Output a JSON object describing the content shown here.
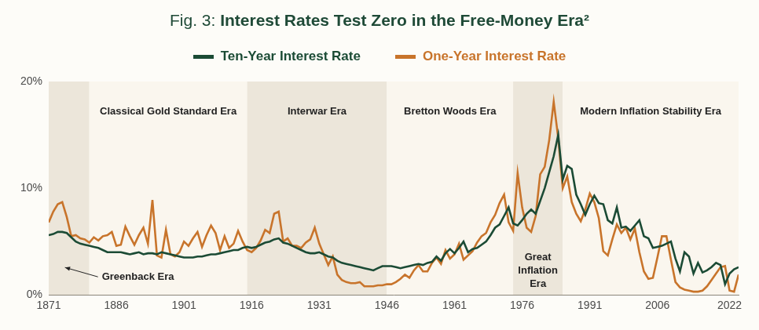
{
  "chart_data": {
    "type": "line",
    "title": "Fig. 3: Interest Rates Test Zero in the Free-Money Era²",
    "legend": "top",
    "grid": false,
    "x": [
      1871,
      1872,
      1873,
      1874,
      1875,
      1876,
      1877,
      1878,
      1879,
      1880,
      1881,
      1882,
      1883,
      1884,
      1885,
      1886,
      1887,
      1888,
      1889,
      1890,
      1891,
      1892,
      1893,
      1894,
      1895,
      1896,
      1897,
      1898,
      1899,
      1900,
      1901,
      1902,
      1903,
      1904,
      1905,
      1906,
      1907,
      1908,
      1909,
      1910,
      1911,
      1912,
      1913,
      1914,
      1915,
      1916,
      1917,
      1918,
      1919,
      1920,
      1921,
      1922,
      1923,
      1924,
      1925,
      1926,
      1927,
      1928,
      1929,
      1930,
      1931,
      1932,
      1933,
      1934,
      1935,
      1936,
      1937,
      1938,
      1939,
      1940,
      1941,
      1942,
      1943,
      1944,
      1945,
      1946,
      1947,
      1948,
      1949,
      1950,
      1951,
      1952,
      1953,
      1954,
      1955,
      1956,
      1957,
      1958,
      1959,
      1960,
      1961,
      1962,
      1963,
      1964,
      1965,
      1966,
      1967,
      1968,
      1969,
      1970,
      1971,
      1972,
      1973,
      1974,
      1975,
      1976,
      1977,
      1978,
      1979,
      1980,
      1981,
      1982,
      1983,
      1984,
      1985,
      1986,
      1987,
      1988,
      1989,
      1990,
      1991,
      1992,
      1993,
      1994,
      1995,
      1996,
      1997,
      1998,
      1999,
      2000,
      2001,
      2002,
      2003,
      2004,
      2005,
      2006,
      2007,
      2008,
      2009,
      2010,
      2011,
      2012,
      2013,
      2014,
      2015,
      2016,
      2017,
      2018,
      2019,
      2020,
      2021,
      2022,
      2023,
      2024
    ],
    "series": [
      {
        "name": "Ten-Year Interest Rate",
        "color": "#1b4b35",
        "values": [
          5.6,
          5.7,
          5.9,
          5.9,
          5.8,
          5.4,
          5.0,
          4.8,
          4.7,
          4.6,
          4.5,
          4.4,
          4.2,
          4.0,
          4.0,
          4.0,
          4.0,
          3.9,
          3.8,
          3.9,
          4.0,
          3.8,
          3.9,
          3.9,
          3.8,
          4.0,
          3.9,
          3.8,
          3.7,
          3.6,
          3.5,
          3.5,
          3.5,
          3.6,
          3.6,
          3.7,
          3.8,
          3.8,
          3.9,
          4.0,
          4.1,
          4.2,
          4.2,
          4.4,
          4.5,
          4.4,
          4.5,
          4.7,
          4.9,
          5.0,
          5.2,
          5.3,
          4.9,
          4.8,
          4.6,
          4.4,
          4.2,
          4.0,
          3.9,
          3.9,
          4.0,
          3.8,
          3.6,
          3.5,
          3.2,
          3.0,
          2.9,
          2.8,
          2.7,
          2.6,
          2.5,
          2.4,
          2.3,
          2.5,
          2.7,
          2.7,
          2.7,
          2.6,
          2.5,
          2.6,
          2.7,
          2.8,
          2.9,
          2.8,
          3.0,
          3.1,
          3.6,
          3.2,
          3.9,
          4.3,
          3.9,
          4.4,
          5.0,
          4.0,
          4.3,
          4.4,
          4.7,
          5.0,
          5.6,
          6.3,
          6.6,
          7.4,
          8.2,
          6.7,
          6.5,
          7.0,
          7.6,
          8.0,
          7.6,
          8.8,
          10.0,
          11.5,
          13.0,
          15.0,
          10.8,
          12.1,
          11.8,
          9.4,
          8.5,
          7.5,
          8.5,
          9.3,
          8.6,
          8.5,
          7.0,
          6.7,
          8.2,
          6.3,
          6.4,
          6.0,
          6.5,
          7.0,
          5.5,
          5.3,
          4.4,
          4.5,
          4.6,
          4.8,
          5.0,
          3.4,
          2.2,
          4.0,
          3.6,
          2.0,
          3.0,
          2.1,
          2.3,
          2.6,
          3.0,
          2.8,
          1.0,
          2.0,
          2.4,
          2.6
        ]
      },
      {
        "name": "One-Year Interest Rate",
        "color": "#c8742b",
        "values": [
          6.8,
          7.8,
          8.5,
          8.7,
          7.3,
          5.5,
          5.6,
          5.3,
          5.2,
          4.9,
          5.4,
          5.1,
          5.5,
          5.6,
          5.9,
          4.6,
          4.7,
          6.4,
          5.5,
          4.7,
          5.6,
          6.3,
          4.8,
          8.9,
          3.7,
          3.5,
          6.1,
          3.8,
          3.6,
          4.0,
          5.0,
          4.6,
          5.3,
          5.9,
          4.5,
          5.6,
          6.5,
          5.8,
          4.2,
          5.5,
          4.4,
          4.8,
          6.0,
          5.0,
          4.2,
          4.0,
          4.4,
          5.1,
          6.1,
          5.8,
          7.6,
          7.8,
          5.0,
          5.3,
          4.6,
          4.6,
          4.4,
          4.9,
          5.2,
          6.3,
          4.8,
          3.8,
          2.8,
          3.6,
          1.9,
          1.4,
          1.2,
          1.1,
          1.1,
          1.2,
          0.8,
          0.8,
          0.8,
          0.9,
          0.9,
          1.0,
          1.0,
          1.2,
          1.5,
          1.9,
          1.6,
          2.3,
          2.8,
          2.2,
          2.2,
          3.0,
          3.5,
          2.9,
          4.2,
          3.4,
          3.8,
          4.8,
          3.3,
          3.7,
          4.1,
          4.9,
          5.5,
          5.8,
          6.8,
          7.5,
          8.6,
          9.4,
          6.8,
          6.0,
          11.4,
          8.2,
          6.3,
          5.9,
          7.4,
          11.3,
          12.0,
          14.5,
          18.1,
          14.7,
          10.0,
          11.1,
          8.7,
          7.6,
          6.9,
          8.0,
          9.5,
          8.7,
          7.2,
          4.1,
          3.7,
          5.2,
          6.6,
          5.8,
          6.3,
          5.2,
          6.2,
          4.0,
          2.2,
          1.5,
          1.6,
          3.5,
          5.5,
          5.5,
          3.3,
          1.2,
          0.7,
          0.5,
          0.4,
          0.3,
          0.3,
          0.4,
          0.8,
          1.4,
          2.0,
          2.6,
          2.7,
          0.4,
          0.3,
          1.9
        ]
      }
    ],
    "xlim": [
      1871,
      2024
    ],
    "xticks": [
      1871,
      1886,
      1901,
      1916,
      1931,
      1946,
      1961,
      1976,
      1991,
      2006,
      2022
    ],
    "ylim": [
      0,
      20
    ],
    "yticks": [
      {
        "value": 0,
        "label": "0%"
      },
      {
        "value": 10,
        "label": "10%"
      },
      {
        "value": 20,
        "label": "20%"
      }
    ],
    "eras": [
      {
        "label": "Greenback Era",
        "start": 1871,
        "end": 1880,
        "color": "#ece6da"
      },
      {
        "label": "Classical Gold Standard Era",
        "start": 1880,
        "end": 1915,
        "color": "#faf6ee"
      },
      {
        "label": "Interwar Era",
        "start": 1915,
        "end": 1946,
        "color": "#ece6da"
      },
      {
        "label": "Bretton Woods Era",
        "start": 1946,
        "end": 1974,
        "color": "#faf6ee"
      },
      {
        "label": "Great Inflation Era",
        "start": 1974,
        "end": 1985,
        "color": "#ece6da"
      },
      {
        "label": "Modern Inflation Stability Era",
        "start": 1985,
        "end": 2024,
        "color": "#faf6ee"
      }
    ]
  }
}
